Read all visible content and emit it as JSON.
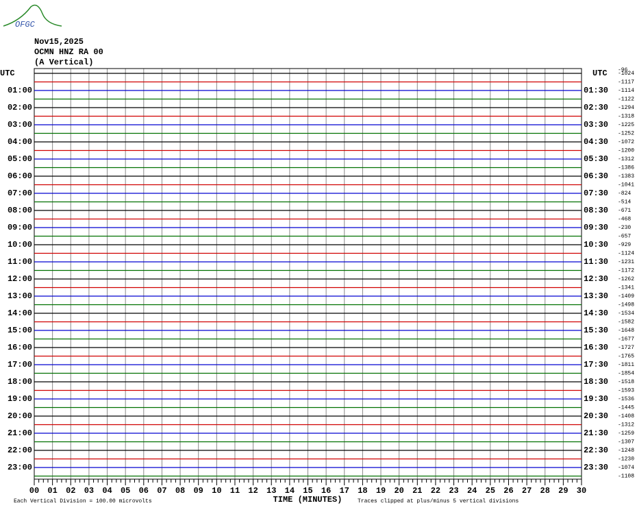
{
  "logo": "OFGC",
  "header": {
    "date": "Nov15,2025",
    "station": "OCMN HNZ RA 00",
    "component": "(A Vertical)"
  },
  "left_axis": {
    "title": "UTC",
    "labels": [
      "01:00",
      "02:00",
      "03:00",
      "04:00",
      "05:00",
      "06:00",
      "07:00",
      "08:00",
      "09:00",
      "10:00",
      "11:00",
      "12:00",
      "13:00",
      "14:00",
      "15:00",
      "16:00",
      "17:00",
      "18:00",
      "19:00",
      "20:00",
      "21:00",
      "22:00",
      "23:00"
    ]
  },
  "right_axis": {
    "title": "UTC",
    "labels": [
      "01:30",
      "02:30",
      "03:30",
      "04:30",
      "05:30",
      "06:30",
      "07:30",
      "08:30",
      "09:30",
      "10:30",
      "11:30",
      "12:30",
      "13:30",
      "14:30",
      "15:30",
      "16:30",
      "17:30",
      "18:30",
      "19:30",
      "20:30",
      "21:30",
      "22:30",
      "23:30"
    ]
  },
  "offset_header": "-96",
  "offsets": [
    "-1024",
    "-1117",
    "-1114",
    "-1122",
    "-1294",
    "-1318",
    "-1225",
    "-1252",
    "-1072",
    "-1200",
    "-1312",
    "-1386",
    "-1383",
    "-1041",
    "-824",
    "-514",
    "-671",
    "-468",
    "-230",
    "-657",
    "-929",
    "-1124",
    "-1231",
    "-1172",
    "-1262",
    "-1341",
    "-1409",
    "-1498",
    "-1534",
    "-1582",
    "-1648",
    "-1677",
    "-1727",
    "-1765",
    "-1811",
    "-1854",
    "-1518",
    "-1593",
    "-1536",
    "-1445",
    "-1408",
    "-1312",
    "-1259",
    "-1307",
    "-1248",
    "-1230",
    "-1074",
    "-1108"
  ],
  "trace_colors": [
    "#000000",
    "#d00000",
    "#0000d0",
    "#007000"
  ],
  "x_axis": {
    "title": "TIME (MINUTES)",
    "ticks": [
      "00",
      "01",
      "02",
      "03",
      "04",
      "05",
      "06",
      "07",
      "08",
      "09",
      "10",
      "11",
      "12",
      "13",
      "14",
      "15",
      "16",
      "17",
      "18",
      "19",
      "20",
      "21",
      "22",
      "23",
      "24",
      "25",
      "26",
      "27",
      "28",
      "29",
      "30"
    ]
  },
  "footer": {
    "scale": "Each Vertical Division =  100.00 microvolts",
    "clip": "Traces clipped at plus/minus 5 vertical divisions"
  }
}
